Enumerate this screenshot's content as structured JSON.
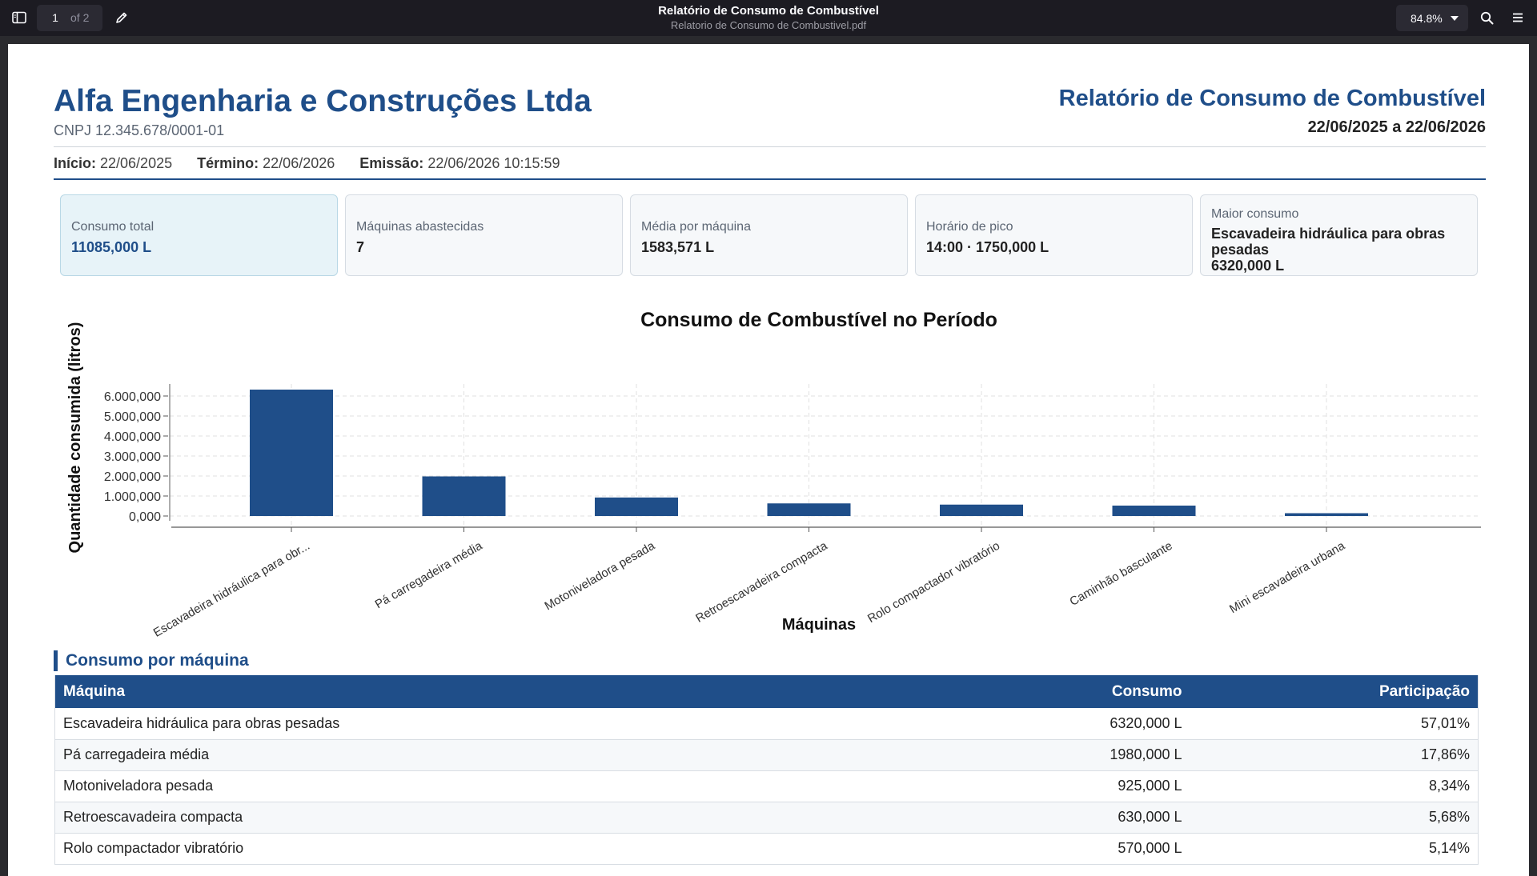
{
  "viewer": {
    "page_current": "1",
    "page_total_label": "of 2",
    "title": "Relatório de Consumo de Combustível",
    "filename": "Relatorio de Consumo de Combustivel.pdf",
    "zoom": "84.8%"
  },
  "report": {
    "company": "Alfa Engenharia e Construções Ltda",
    "cnpj": "CNPJ 12.345.678/0001-01",
    "title": "Relatório de Consumo de Combustível",
    "range": "22/06/2025 a 22/06/2026",
    "meta": {
      "start_label": "Início:",
      "start_value": "22/06/2025",
      "end_label": "Término:",
      "end_value": "22/06/2026",
      "issued_label": "Emissão:",
      "issued_value": "22/06/2026 10:15:59"
    }
  },
  "cards": [
    {
      "label": "Consumo total",
      "value": "11085,000 L"
    },
    {
      "label": "Máquinas abastecidas",
      "value": "7"
    },
    {
      "label": "Média por máquina",
      "value": "1583,571 L"
    },
    {
      "label": "Horário de pico",
      "value": "14:00 · 1750,000 L"
    },
    {
      "label": "Maior consumo",
      "value": "Escavadeira hidráulica para obras pesadas",
      "value2": "6320,000 L"
    }
  ],
  "chart_data": {
    "type": "bar",
    "title": "Consumo de Combustível no Período",
    "xlabel": "Máquinas",
    "ylabel": "Quantidade consumida (litros)",
    "categories": [
      "Escavadeira hidráulica para obr...",
      "Pá carregadeira média",
      "Motoniveladora pesada",
      "Retroescavadeira compacta",
      "Rolo compactador vibratório",
      "Caminhão basculante",
      "Mini escavadeira urbana"
    ],
    "values": [
      6320000,
      1980000,
      925000,
      630000,
      570000,
      520000,
      140000
    ],
    "yticks": [
      "0,000",
      "1.000,000",
      "2.000,000",
      "3.000,000",
      "4.000,000",
      "5.000,000",
      "6.000,000"
    ],
    "ylim": [
      0,
      6600000
    ],
    "grid": true,
    "color": "#1f4e89"
  },
  "table": {
    "section_title": "Consumo por máquina",
    "headers": [
      "Máquina",
      "Consumo",
      "Participação"
    ],
    "rows": [
      [
        "Escavadeira hidráulica para obras pesadas",
        "6320,000 L",
        "57,01%"
      ],
      [
        "Pá carregadeira média",
        "1980,000 L",
        "17,86%"
      ],
      [
        "Motoniveladora pesada",
        "925,000 L",
        "8,34%"
      ],
      [
        "Retroescavadeira compacta",
        "630,000 L",
        "5,68%"
      ],
      [
        "Rolo compactador vibratório",
        "570,000 L",
        "5,14%"
      ]
    ]
  }
}
